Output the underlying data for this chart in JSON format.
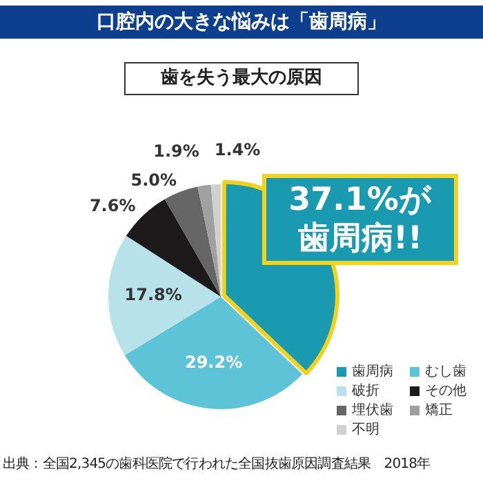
{
  "chart_data": {
    "type": "pie",
    "title": "口腔内の大きな悩みは「歯周病」",
    "subtitle": "歯を失う最大の原因",
    "categories": [
      "歯周病",
      "むし歯",
      "破折",
      "その他",
      "埋伏歯",
      "矯正",
      "不明"
    ],
    "values": [
      37.1,
      29.2,
      17.8,
      7.6,
      5.0,
      1.9,
      1.4
    ],
    "colors": [
      "#1a9ab0",
      "#5cc4d6",
      "#b8e2ea",
      "#1c1a1a",
      "#666666",
      "#a0a0a0",
      "#d0d0d0"
    ],
    "value_labels": [
      null,
      "29.2%",
      "17.8%",
      "7.6%",
      "5.0%",
      "1.9%",
      "1.4%"
    ],
    "legend": "bottom right",
    "annotations": [
      "37.1%が歯周病!!",
      "出典：全国2,345の歯科医院で行われた全国抜歯原因調査結果　2018年"
    ]
  }
}
